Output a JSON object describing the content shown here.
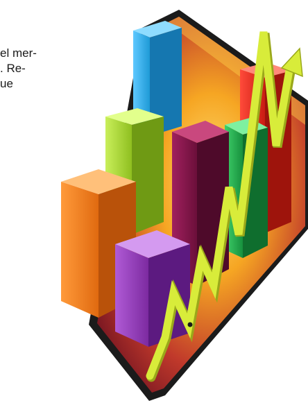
{
  "text_snippet": {
    "lines": [
      "el mer-",
      ". Re-",
      "ue"
    ]
  },
  "illustration": {
    "subject": "3D bar chart with rising arrow on a tilted board",
    "colors": {
      "board_frame": "#1b1b1b",
      "board_warm": "#f6a623",
      "board_red": "#c0392b",
      "bar_blue": "#1e9ad6",
      "bar_lime": "#9ccd2a",
      "bar_orange": "#f07a1a",
      "bar_purple": "#8e36b0",
      "bar_maroon": "#7a1445",
      "bar_green": "#1ea84a",
      "bar_red": "#e0261b",
      "arrow": "#d8ec3a"
    }
  }
}
